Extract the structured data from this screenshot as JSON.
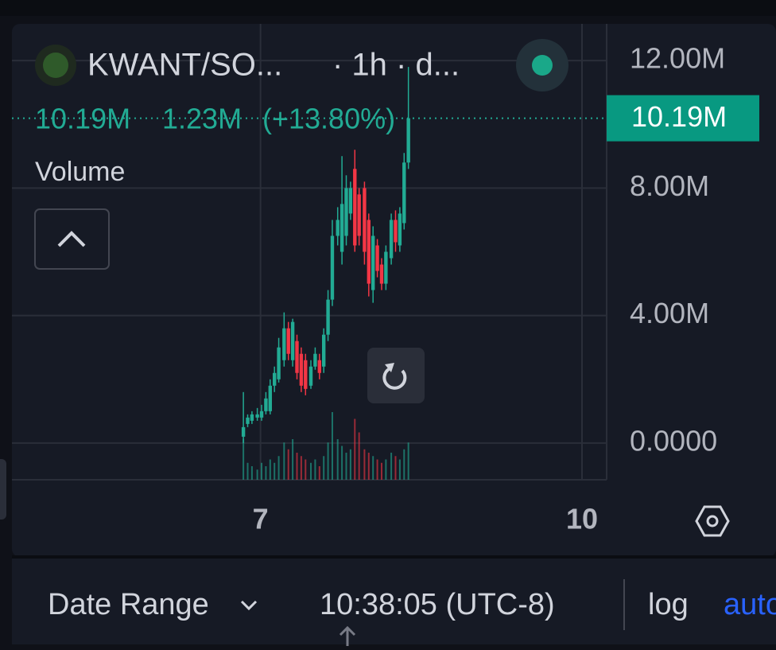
{
  "header": {
    "symbol": "KWANT/SO...",
    "interval": "· 1h · d...",
    "close": "10.19M",
    "change": "1.23M",
    "change_pct": "(+13.80%)",
    "indicator": "Volume"
  },
  "chart_data": {
    "type": "candlestick",
    "x": [
      6.84,
      6.88,
      6.92,
      6.97,
      7.01,
      7.05,
      7.09,
      7.13,
      7.17,
      7.22,
      7.26,
      7.3,
      7.34,
      7.38,
      7.42,
      7.47,
      7.51,
      7.55,
      7.59,
      7.63,
      7.67,
      7.72,
      7.76,
      7.8,
      7.84,
      7.88,
      7.92,
      7.97,
      8.01,
      8.05,
      8.09,
      8.13,
      8.17,
      8.22,
      8.26,
      8.3,
      8.34,
      8.38
    ],
    "open": [
      0.2,
      0.6,
      0.7,
      0.8,
      0.8,
      1.0,
      1.0,
      1.8,
      2.0,
      2.6,
      3.6,
      2.6,
      3.2,
      2.8,
      2.6,
      1.8,
      2.4,
      2.6,
      2.4,
      3.4,
      4.5,
      6.5,
      6.0,
      6.5,
      7.2,
      8.6,
      7.8,
      8.0,
      7.0,
      4.8,
      6.2,
      5.6,
      5.0,
      5.8,
      7.0,
      6.2,
      6.9,
      8.8
    ],
    "high": [
      1.6,
      0.9,
      1.0,
      1.1,
      1.2,
      1.6,
      2.0,
      2.4,
      3.3,
      4.1,
      3.8,
      3.9,
      3.4,
      3.0,
      2.8,
      2.6,
      3.0,
      2.8,
      3.6,
      4.8,
      7.0,
      7.4,
      9.0,
      8.4,
      8.2,
      9.2,
      8.0,
      8.2,
      7.2,
      6.8,
      6.4,
      5.8,
      6.2,
      7.2,
      7.3,
      7.4,
      9.1,
      11.8
    ],
    "low": [
      0.0,
      0.5,
      0.6,
      0.7,
      0.7,
      0.9,
      0.9,
      1.6,
      1.9,
      2.4,
      2.6,
      2.4,
      2.0,
      1.6,
      1.5,
      1.7,
      2.3,
      2.0,
      2.2,
      3.2,
      4.3,
      6.2,
      5.6,
      6.2,
      7.0,
      6.0,
      6.2,
      5.6,
      4.6,
      4.4,
      5.2,
      4.8,
      4.8,
      5.6,
      6.0,
      6.0,
      6.7,
      8.6
    ],
    "close": [
      0.5,
      0.8,
      0.9,
      0.9,
      1.0,
      1.4,
      1.8,
      2.2,
      3.0,
      3.6,
      2.8,
      3.8,
      2.2,
      1.8,
      1.7,
      2.4,
      2.8,
      2.2,
      3.4,
      4.5,
      6.5,
      7.0,
      7.5,
      8.0,
      8.0,
      6.2,
      6.5,
      6.0,
      5.0,
      6.5,
      5.4,
      5.0,
      6.0,
      7.0,
      6.3,
      7.2,
      8.8,
      10.19
    ],
    "volume": [
      60,
      25,
      20,
      15,
      25,
      20,
      30,
      25,
      35,
      55,
      45,
      60,
      40,
      35,
      30,
      25,
      30,
      20,
      35,
      55,
      100,
      60,
      50,
      40,
      45,
      90,
      70,
      45,
      40,
      35,
      30,
      25,
      30,
      40,
      35,
      30,
      45,
      55
    ],
    "up_color": "#22ab94",
    "down_color": "#f23645",
    "xlim": [
      4.68,
      10.23
    ],
    "xticks": [
      7,
      10
    ],
    "ylim": [
      -1.15,
      13.15
    ],
    "yticks": [
      {
        "value": 0,
        "label": "0.0000"
      },
      {
        "value": 4,
        "label": "4.00M"
      },
      {
        "value": 8,
        "label": "8.00M"
      },
      {
        "value": 12,
        "label": "12.00M"
      }
    ],
    "last": {
      "value": 10.19,
      "label": "10.19M"
    },
    "grid": true
  },
  "footer": {
    "date_range": "Date Range",
    "time": "10:38:05 (UTC-8)",
    "log": "log",
    "auto": "auto"
  }
}
